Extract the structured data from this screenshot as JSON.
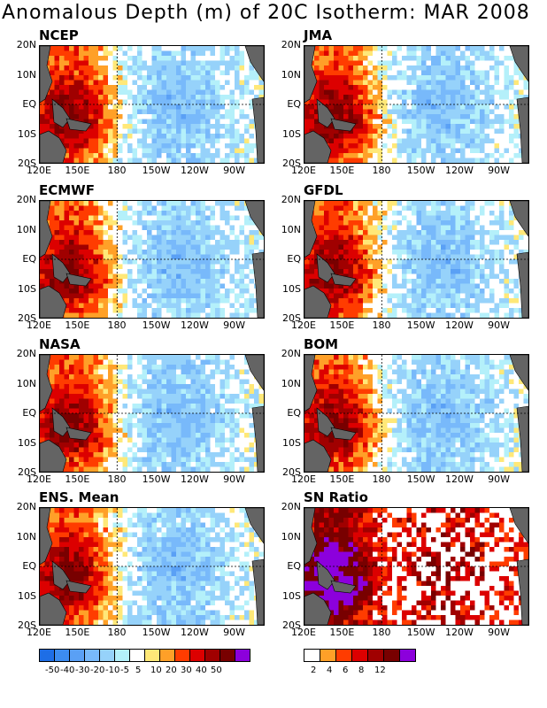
{
  "title": "Anomalous Depth (m) of 20C Isotherm: MAR 2008",
  "y_ticks": [
    "20N",
    "10N",
    "EQ",
    "10S",
    "20S"
  ],
  "x_ticks": [
    "120E",
    "150E",
    "180",
    "150W",
    "120W",
    "90W"
  ],
  "panels": [
    {
      "name": "NCEP"
    },
    {
      "name": "JMA"
    },
    {
      "name": "ECMWF"
    },
    {
      "name": "GFDL"
    },
    {
      "name": "NASA"
    },
    {
      "name": "BOM"
    },
    {
      "name": "ENS. Mean"
    },
    {
      "name": "SN Ratio"
    }
  ],
  "colorbar_anomaly": {
    "labels": [
      "-50",
      "-40",
      "-30",
      "-20",
      "-10",
      "-5",
      "5",
      "10",
      "20",
      "30",
      "40",
      "50"
    ],
    "colors": [
      "#1e6ee6",
      "#3c8cf0",
      "#5aa0f5",
      "#78b9fa",
      "#96d2fa",
      "#b4f0fa",
      "#ffffff",
      "#ffe878",
      "#ffa028",
      "#ff3c00",
      "#dc0000",
      "#a00000",
      "#780000",
      "#8c00dc"
    ]
  },
  "colorbar_sn": {
    "labels": [
      "2",
      "4",
      "6",
      "8",
      "12"
    ],
    "colors": [
      "#ffffff",
      "#ffa028",
      "#ff3c00",
      "#dc0000",
      "#a00000",
      "#780000",
      "#8c00dc"
    ]
  },
  "chart_data": {
    "type": "heatmap",
    "title": "Anomalous Depth (m) of 20C Isotherm: MAR 2008",
    "xlabel": "",
    "ylabel": "",
    "x_range": [
      "120E",
      "70W"
    ],
    "y_range": [
      "20S",
      "20N"
    ],
    "grid": "dashed lines at EQ and 180",
    "panels": [
      "NCEP",
      "JMA",
      "ECMWF",
      "GFDL",
      "NASA",
      "BOM",
      "ENS. Mean",
      "SN Ratio"
    ],
    "pattern": "positive anomalies (30-50+ m) in western Pacific 120E-180, negative anomalies (-10 to -40 m) in central/eastern Pacific 160W-90W"
  },
  "colors": {
    "land": "#646464",
    "background": "#ffffff"
  }
}
